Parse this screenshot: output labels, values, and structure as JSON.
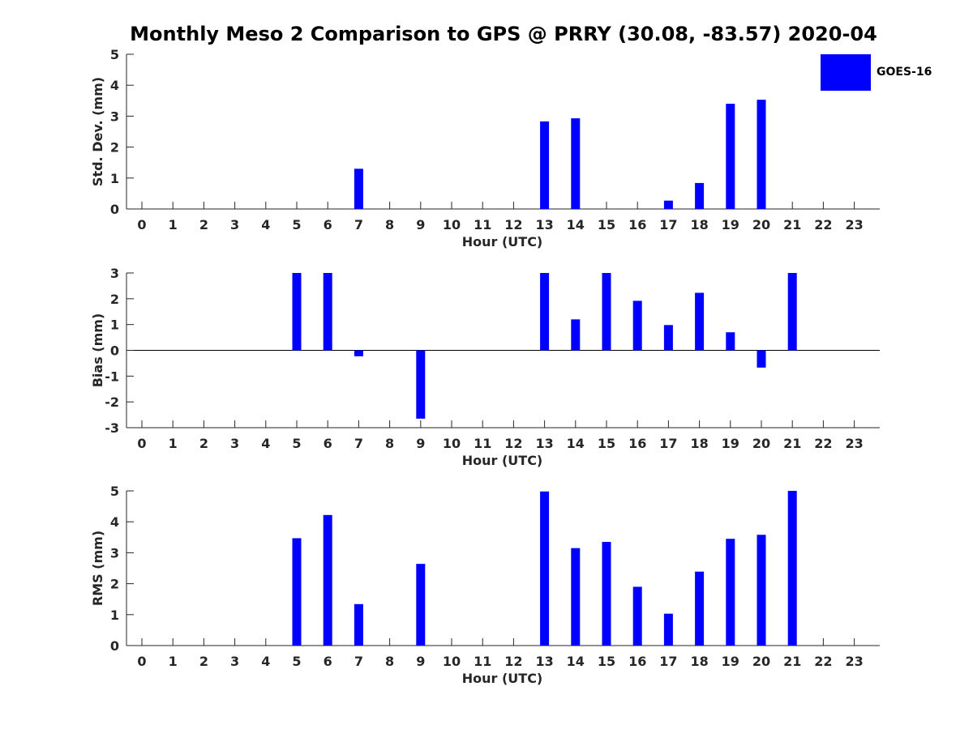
{
  "title": "Monthly Meso 2 Comparison to GPS @ PRRY (30.08, -83.57) 2020-04",
  "colors": {
    "series": "#0000ff",
    "axis": "#262626"
  },
  "chart_data": [
    {
      "type": "bar",
      "series": [
        {
          "name": "GOES-16",
          "values": [
            null,
            null,
            null,
            null,
            null,
            null,
            null,
            1.3,
            null,
            null,
            null,
            null,
            null,
            2.83,
            2.93,
            null,
            null,
            0.27,
            0.84,
            3.4,
            3.53,
            null,
            null,
            null
          ]
        }
      ],
      "categories": [
        "0",
        "1",
        "2",
        "3",
        "4",
        "5",
        "6",
        "7",
        "8",
        "9",
        "10",
        "11",
        "12",
        "13",
        "14",
        "15",
        "16",
        "17",
        "18",
        "19",
        "20",
        "21",
        "22",
        "23"
      ],
      "xlabel": "Hour (UTC)",
      "ylabel": "Std. Dev. (mm)",
      "ylim": [
        0,
        5
      ],
      "yticks": [
        "0",
        "1",
        "2",
        "3",
        "4",
        "5"
      ],
      "legend": "top-right"
    },
    {
      "type": "bar",
      "series": [
        {
          "name": "GOES-16",
          "values": [
            null,
            null,
            null,
            null,
            null,
            3,
            3,
            -0.23,
            null,
            -2.65,
            null,
            null,
            null,
            3,
            1.2,
            3,
            1.92,
            0.98,
            2.23,
            0.7,
            -0.67,
            3,
            null,
            null
          ]
        }
      ],
      "categories": [
        "0",
        "1",
        "2",
        "3",
        "4",
        "5",
        "6",
        "7",
        "8",
        "9",
        "10",
        "11",
        "12",
        "13",
        "14",
        "15",
        "16",
        "17",
        "18",
        "19",
        "20",
        "21",
        "22",
        "23"
      ],
      "xlabel": "Hour (UTC)",
      "ylabel": "Bias (mm)",
      "ylim": [
        -3,
        3
      ],
      "yticks": [
        "-3",
        "-2",
        "-1",
        "0",
        "1",
        "2",
        "3"
      ]
    },
    {
      "type": "bar",
      "series": [
        {
          "name": "GOES-16",
          "values": [
            null,
            null,
            null,
            null,
            null,
            3.47,
            4.22,
            1.34,
            null,
            2.64,
            null,
            null,
            null,
            4.98,
            3.15,
            3.35,
            1.9,
            1.03,
            2.39,
            3.45,
            3.58,
            5,
            null,
            null
          ]
        }
      ],
      "categories": [
        "0",
        "1",
        "2",
        "3",
        "4",
        "5",
        "6",
        "7",
        "8",
        "9",
        "10",
        "11",
        "12",
        "13",
        "14",
        "15",
        "16",
        "17",
        "18",
        "19",
        "20",
        "21",
        "22",
        "23"
      ],
      "xlabel": "Hour (UTC)",
      "ylabel": "RMS (mm)",
      "ylim": [
        0,
        5
      ],
      "yticks": [
        "0",
        "1",
        "2",
        "3",
        "4",
        "5"
      ]
    }
  ]
}
